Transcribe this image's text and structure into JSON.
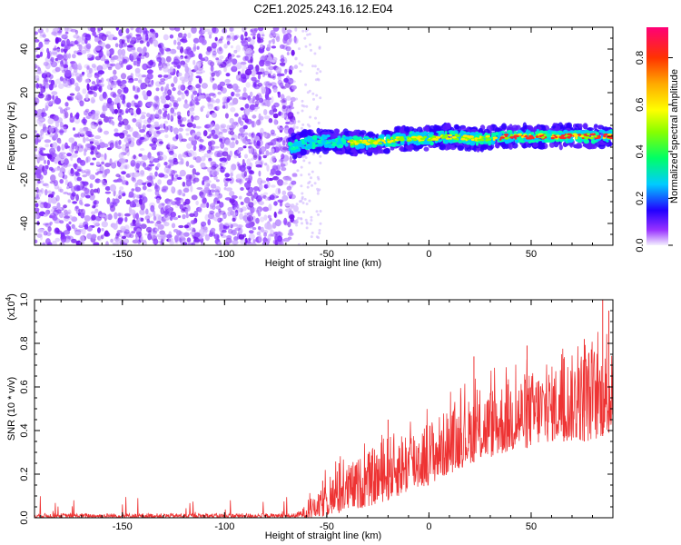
{
  "title": "C2E1.2025.243.16.12.E04",
  "chart_data": [
    {
      "type": "heatmap",
      "name": "spectrogram",
      "xlabel": "Height of straight line (km)",
      "ylabel": "Frequency (Hz)",
      "xlim": [
        -193,
        90
      ],
      "ylim": [
        -50,
        50
      ],
      "xticks": [
        -150,
        -100,
        -50,
        0,
        50
      ],
      "yticks": [
        -40,
        -20,
        0,
        20,
        40
      ],
      "noise_region_x": [
        -193,
        -65
      ],
      "signal_region_x": [
        -68,
        90
      ],
      "signal_trace": [
        {
          "x": -68,
          "y": -5
        },
        {
          "x": -60,
          "y": -3
        },
        {
          "x": -50,
          "y": -2
        },
        {
          "x": -40,
          "y": -3
        },
        {
          "x": -30,
          "y": -3
        },
        {
          "x": -20,
          "y": -2
        },
        {
          "x": -10,
          "y": -1
        },
        {
          "x": 0,
          "y": -1
        },
        {
          "x": 10,
          "y": 0
        },
        {
          "x": 20,
          "y": -1
        },
        {
          "x": 30,
          "y": -1
        },
        {
          "x": 40,
          "y": 0
        },
        {
          "x": 50,
          "y": 0
        },
        {
          "x": 60,
          "y": 0
        },
        {
          "x": 70,
          "y": 0
        },
        {
          "x": 80,
          "y": 0
        },
        {
          "x": 90,
          "y": 0
        }
      ],
      "colorbar": {
        "label": "Normalized spectral amplitude",
        "range": [
          0,
          0.93
        ],
        "ticks": [
          "0.0",
          "0.2",
          "0.4",
          "0.6",
          "0.8"
        ]
      }
    },
    {
      "type": "line",
      "name": "snr",
      "xlabel": "Height of straight line (km)",
      "ylabel": "SNR (10 * v/v)",
      "scale_label_base": "(x10",
      "scale_label_exp": "4",
      "scale_label_close": ")",
      "xlim": [
        -193,
        90
      ],
      "ylim": [
        0,
        1.0
      ],
      "xticks": [
        -150,
        -100,
        -50,
        0,
        50
      ],
      "yticks": [
        "0.0",
        "0.2",
        "0.4",
        "0.6",
        "0.8",
        "1.0"
      ],
      "color": "#ee3333",
      "envelope": [
        {
          "x": -193,
          "low": 0.0,
          "high": 0.02
        },
        {
          "x": -65,
          "low": 0.0,
          "high": 0.02
        },
        {
          "x": -55,
          "low": 0.0,
          "high": 0.1
        },
        {
          "x": -45,
          "low": 0.02,
          "high": 0.22
        },
        {
          "x": -30,
          "low": 0.05,
          "high": 0.3
        },
        {
          "x": -20,
          "low": 0.08,
          "high": 0.38
        },
        {
          "x": 0,
          "low": 0.15,
          "high": 0.45
        },
        {
          "x": 20,
          "low": 0.25,
          "high": 0.55
        },
        {
          "x": 40,
          "low": 0.3,
          "high": 0.65
        },
        {
          "x": 60,
          "low": 0.35,
          "high": 0.7
        },
        {
          "x": 80,
          "low": 0.35,
          "high": 0.8
        },
        {
          "x": 90,
          "low": 0.4,
          "high": 0.75
        }
      ],
      "peaks": [
        {
          "x": -52,
          "y": 0.17
        },
        {
          "x": -44,
          "y": 0.25
        },
        {
          "x": -20,
          "y": 0.45
        },
        {
          "x": 22,
          "y": 0.74
        },
        {
          "x": 48,
          "y": 0.79
        },
        {
          "x": 66,
          "y": 0.73
        },
        {
          "x": 76,
          "y": 0.82
        },
        {
          "x": 85,
          "y": 1.0
        },
        {
          "x": 88,
          "y": 0.95
        }
      ]
    }
  ]
}
